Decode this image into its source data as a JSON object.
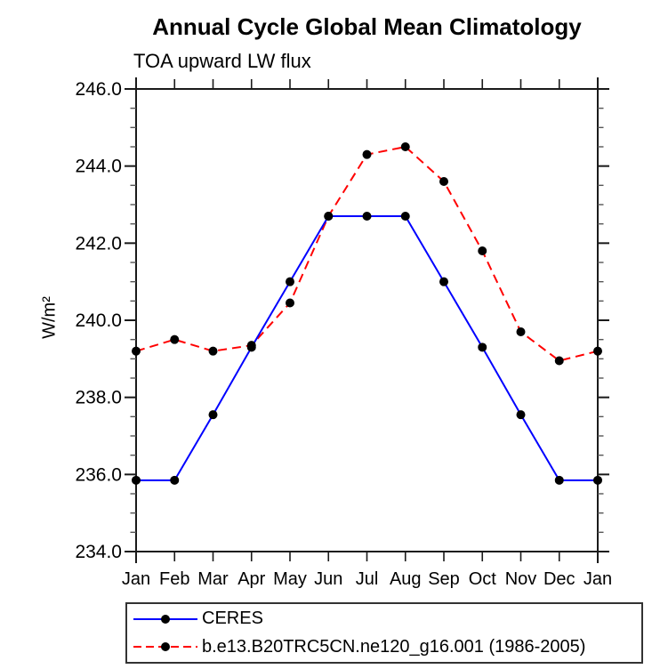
{
  "chart_data": {
    "type": "line",
    "title": "Annual Cycle Global Mean Climatology",
    "subtitle": "TOA upward LW flux",
    "ylabel": "W/m²",
    "xlabel": "",
    "categories": [
      "Jan",
      "Feb",
      "Mar",
      "Apr",
      "May",
      "Jun",
      "Jul",
      "Aug",
      "Sep",
      "Oct",
      "Nov",
      "Dec",
      "Jan"
    ],
    "ylim": [
      234.0,
      246.0
    ],
    "ytick_major_step": 2.0,
    "ytick_minor_step": 0.5,
    "grid": false,
    "legend_position": "bottom-left-box",
    "axis_color": "#1a1a1a",
    "marker_color": "#000000",
    "series": [
      {
        "name": "CERES",
        "color": "#0000ff",
        "style": "solid",
        "marker": "black-dot",
        "values": [
          235.85,
          235.85,
          237.55,
          239.3,
          241.0,
          242.7,
          242.7,
          242.7,
          241.0,
          239.3,
          237.55,
          235.85,
          235.85
        ]
      },
      {
        "name": "b.e13.B20TRC5CN.ne120_g16.001 (1986-2005)",
        "color": "#ff0000",
        "style": "dashed",
        "marker": "black-dot",
        "values": [
          239.2,
          239.5,
          239.2,
          239.35,
          240.45,
          242.7,
          244.3,
          244.5,
          243.6,
          241.8,
          239.7,
          238.95,
          239.2
        ]
      }
    ]
  }
}
